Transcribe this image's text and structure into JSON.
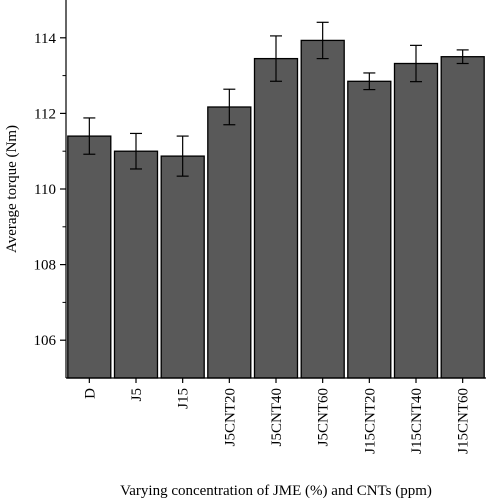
{
  "chart_data": {
    "type": "bar",
    "categories": [
      "D",
      "J5",
      "J15",
      "J5CNT20",
      "J5CNT40",
      "J5CNT60",
      "J15CNT20",
      "J15CNT40",
      "J15CNT60"
    ],
    "values": [
      111.4,
      111.0,
      110.87,
      112.17,
      113.45,
      113.93,
      112.85,
      113.32,
      113.5
    ],
    "errors": [
      0.48,
      0.47,
      0.53,
      0.47,
      0.6,
      0.48,
      0.22,
      0.48,
      0.18
    ],
    "xlabel": "Varying concentration of JME (%) and CNTs (ppm)",
    "ylabel": "Average torque (Nm)",
    "ylim": [
      105,
      115
    ],
    "yticks": [
      "106",
      "108",
      "110",
      "112",
      "114"
    ],
    "grid": false,
    "legend": "none",
    "bar_color": "#595959",
    "edge_color": "#000000"
  }
}
